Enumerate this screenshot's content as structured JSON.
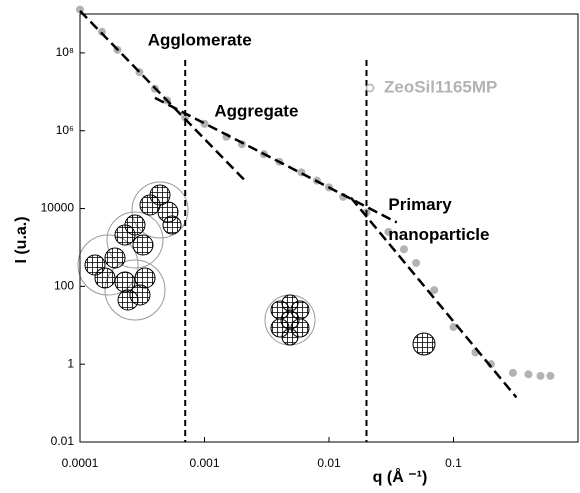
{
  "chart_data": {
    "type": "scatter",
    "x_label": "q (Å ⁻¹)",
    "y_label": "I (u.a.)",
    "log_x": true,
    "log_y": true,
    "xlim": [
      0.0001,
      1
    ],
    "ylim": [
      0.01,
      1000000000
    ],
    "xticks": [
      0.0001,
      0.001,
      0.01,
      0.1
    ],
    "yticks": [
      0.01,
      1,
      100,
      10000,
      {
        "value": 1000000,
        "label": "10⁶"
      },
      {
        "value": 100000000,
        "label": "10⁸"
      }
    ],
    "legend": "upper right",
    "series": [
      {
        "name": "ZeoSil1165MP",
        "color": "#b3b3b3",
        "x": [
          0.0001,
          0.00015,
          0.0002,
          0.0003,
          0.0004,
          0.0005,
          0.0007,
          0.001,
          0.0015,
          0.002,
          0.003,
          0.004,
          0.006,
          0.008,
          0.01,
          0.013,
          0.02,
          0.03,
          0.04,
          0.05,
          0.07,
          0.1,
          0.15,
          0.2,
          0.3,
          0.4,
          0.5,
          0.6
        ],
        "values": [
          1300000000,
          350000000,
          120000000,
          32000000,
          12000000,
          6000000,
          2200000,
          1500000,
          700000,
          450000,
          250000,
          160000,
          85000,
          52000,
          35000,
          20000,
          8000,
          2500,
          900,
          400,
          80,
          9,
          2,
          1,
          0.6,
          0.55,
          0.5,
          0.5
        ]
      }
    ],
    "fit_lines": [
      {
        "x": [
          0.0001,
          0.0022
        ],
        "y": [
          1200000000,
          46000
        ]
      },
      {
        "x": [
          0.0004,
          0.035
        ],
        "y": [
          7000000,
          4400
        ]
      },
      {
        "x": [
          0.015,
          0.32
        ],
        "y": [
          19000,
          0.14
        ]
      }
    ],
    "vlines": [
      0.0007,
      0.02
    ],
    "annotations": [
      {
        "text": "Agglomerate",
        "x": 0.00035,
        "y": 200000000
      },
      {
        "text": "Aggregate",
        "x": 0.0012,
        "y": 3000000
      },
      {
        "text": "Primary",
        "x": 0.03,
        "y": 12000
      },
      {
        "text": "nanoparticle",
        "x": 0.03,
        "y": 2000
      }
    ]
  }
}
